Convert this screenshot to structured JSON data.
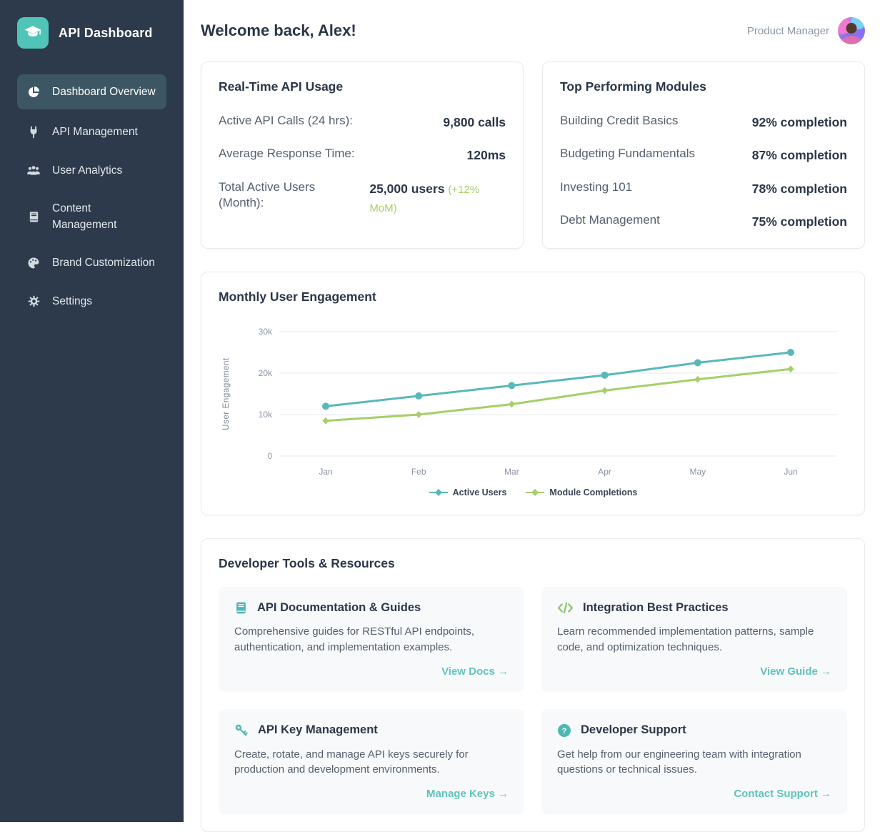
{
  "app": {
    "name": "API Dashboard"
  },
  "sidebar": {
    "items": [
      {
        "label": "Dashboard Overview",
        "icon": "pie-chart",
        "active": true
      },
      {
        "label": "API Management",
        "icon": "plug",
        "active": false
      },
      {
        "label": "User Analytics",
        "icon": "users",
        "active": false
      },
      {
        "label": "Content Management",
        "icon": "book",
        "active": false
      },
      {
        "label": "Brand Customization",
        "icon": "palette",
        "active": false
      },
      {
        "label": "Settings",
        "icon": "gear",
        "active": false
      }
    ]
  },
  "header": {
    "greeting": "Welcome back, Alex!",
    "user_role": "Product Manager"
  },
  "colors": {
    "accent_teal": "#50c5b7",
    "accent_green": "#a5cf68",
    "sidebar_bg": "#2d3a4b",
    "active_item_bg": "#3c5763",
    "link_teal": "#5fc3bb",
    "text_dark": "#2b3648",
    "text_gray": "#55606e"
  },
  "api_usage": {
    "title": "Real-Time API Usage",
    "rows": [
      {
        "label": "Active API Calls (24 hrs):",
        "value": "9,800 calls",
        "note": ""
      },
      {
        "label": "Average Response Time:",
        "value": "120ms",
        "note": ""
      },
      {
        "label": "Total Active Users (Month):",
        "value": "25,000 users",
        "note": "(+12% MoM)"
      }
    ]
  },
  "top_modules": {
    "title": "Top Performing Modules",
    "rows": [
      {
        "label": "Building Credit Basics",
        "value": "92% completion"
      },
      {
        "label": "Budgeting Fundamentals",
        "value": "87% completion"
      },
      {
        "label": "Investing 101",
        "value": "78% completion"
      },
      {
        "label": "Debt Management",
        "value": "75% completion"
      }
    ]
  },
  "chart_data": {
    "type": "line",
    "title": "Monthly User Engagement",
    "categories": [
      "Jan",
      "Feb",
      "Mar",
      "Apr",
      "May",
      "Jun"
    ],
    "series": [
      {
        "name": "Active Users",
        "color": "#58b8ba",
        "marker": "circle",
        "values": [
          12000,
          14500,
          17000,
          19500,
          22500,
          25000
        ]
      },
      {
        "name": "Module Completions",
        "color": "#a5cf68",
        "marker": "diamond",
        "values": [
          8500,
          10000,
          12500,
          15800,
          18500,
          21000
        ]
      }
    ],
    "xlabel": "",
    "ylabel": "User Engagement",
    "ylim": [
      0,
      30000
    ],
    "yticks": [
      {
        "label": "0",
        "value": 0
      },
      {
        "label": "10k",
        "value": 10000
      },
      {
        "label": "20k",
        "value": 20000
      },
      {
        "label": "30k",
        "value": 30000
      }
    ],
    "grid": true,
    "legend_position": "bottom"
  },
  "dev_tools": {
    "title": "Developer Tools & Resources",
    "cards": [
      {
        "icon": "book",
        "title": "API Documentation & Guides",
        "description": "Comprehensive guides for RESTful API endpoints, authentication, and implementation examples.",
        "link": "View Docs →"
      },
      {
        "icon": "code",
        "title": "Integration Best Practices",
        "description": "Learn recommended implementation patterns, sample code, and optimization techniques.",
        "link": "View Guide →"
      },
      {
        "icon": "key",
        "title": "API Key Management",
        "description": "Create, rotate, and manage API keys securely for production and development environments.",
        "link": "Manage Keys →"
      },
      {
        "icon": "help",
        "title": "Developer Support",
        "description": "Get help from our engineering team with integration questions or technical issues.",
        "link": "Contact Support →"
      }
    ]
  }
}
